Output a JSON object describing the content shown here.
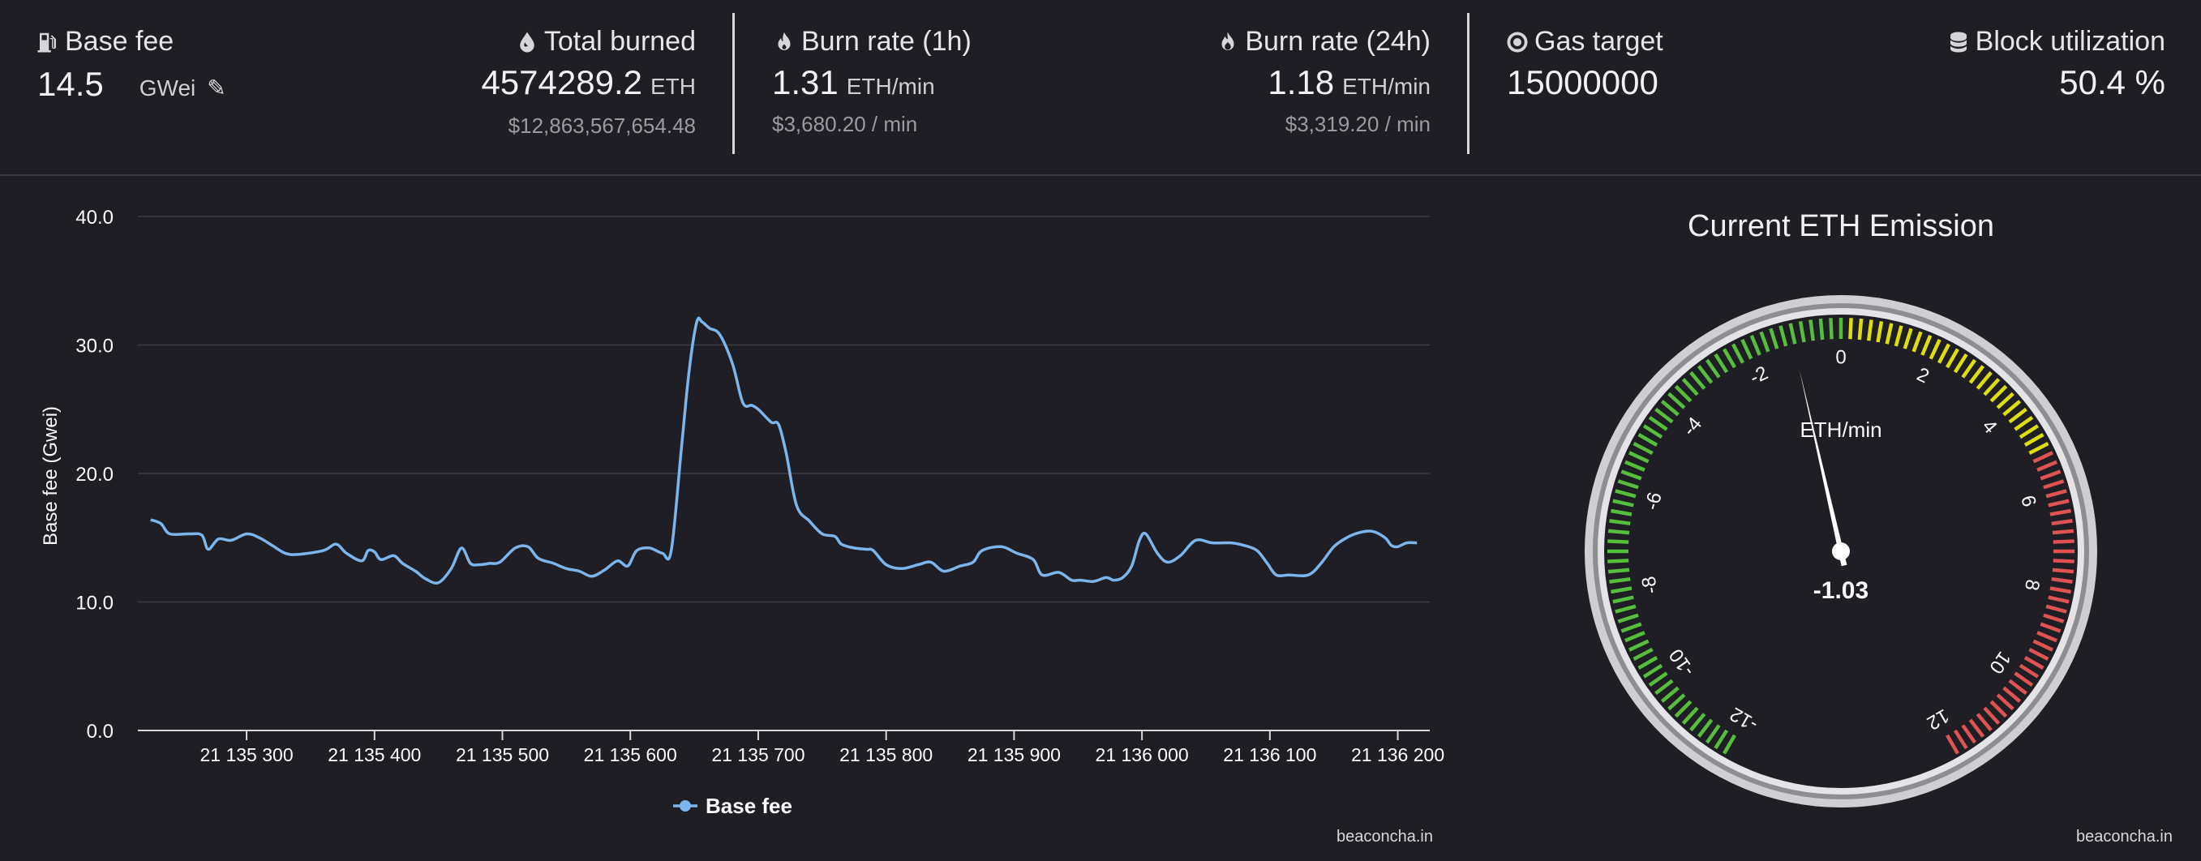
{
  "stats": {
    "base_fee": {
      "label": "Base fee",
      "value": "14.5",
      "unit": "GWei",
      "icon": "gas-pump-icon"
    },
    "total_burned": {
      "label": "Total burned",
      "value": "4574289.2",
      "unit": "ETH",
      "usd": "$12,863,567,654.48",
      "icon": "droplet-icon"
    },
    "burn_rate_1h": {
      "label": "Burn rate (1h)",
      "value": "1.31",
      "unit": "ETH/min",
      "usd": "$3,680.20 / min",
      "icon": "fire-icon"
    },
    "burn_rate_24h": {
      "label": "Burn rate (24h)",
      "value": "1.18",
      "unit": "ETH/min",
      "usd": "$3,319.20 / min",
      "icon": "fire-alt-icon"
    },
    "gas_target": {
      "label": "Gas target",
      "value": "15000000",
      "icon": "target-icon"
    },
    "block_utilization": {
      "label": "Block utilization",
      "value": "50.4 %",
      "icon": "database-icon"
    }
  },
  "chart_data": [
    {
      "type": "line",
      "ylabel": "Base fee (Gwei)",
      "xlabel": "",
      "ylim": [
        0,
        40
      ],
      "xlim": [
        21135215,
        21136225
      ],
      "yticks": [
        "0.0",
        "10.0",
        "20.0",
        "30.0",
        "40.0"
      ],
      "yticks_values": [
        0,
        10,
        20,
        30,
        40
      ],
      "xticks": [
        "21 135 300",
        "21 135 400",
        "21 135 500",
        "21 135 600",
        "21 135 700",
        "21 135 800",
        "21 135 900",
        "21 136 000",
        "21 136 100",
        "21 136 200"
      ],
      "xticks_values": [
        21135300,
        21135400,
        21135500,
        21135600,
        21135700,
        21135800,
        21135900,
        21136000,
        21136100,
        21136200
      ],
      "grid": true,
      "legend_position": "bottom-center",
      "series": [
        {
          "name": "Base fee",
          "color": "#7cb5ec",
          "x": [
            21135225,
            21135233,
            21135240,
            21135255,
            21135265,
            21135270,
            21135278,
            21135288,
            21135300,
            21135310,
            21135320,
            21135330,
            21135340,
            21135360,
            21135370,
            21135378,
            21135390,
            21135395,
            21135400,
            21135405,
            21135415,
            21135422,
            21135432,
            21135440,
            21135450,
            21135460,
            21135468,
            21135475,
            21135482,
            21135490,
            21135498,
            21135510,
            21135520,
            21135528,
            21135540,
            21135550,
            21135560,
            21135570,
            21135580,
            21135590,
            21135598,
            21135605,
            21135615,
            21135625,
            21135632,
            21135640,
            21135646,
            21135652,
            21135656,
            21135662,
            21135670,
            21135680,
            21135688,
            21135695,
            21135700,
            21135710,
            21135716,
            21135722,
            21135730,
            21135740,
            21135750,
            21135760,
            21135765,
            21135775,
            21135785,
            21135790,
            21135800,
            21135812,
            21135825,
            21135835,
            21135845,
            21135858,
            21135868,
            21135875,
            21135890,
            21135902,
            21135915,
            21135922,
            21135935,
            21135945,
            21135952,
            21135962,
            21135972,
            21135978,
            21135985,
            21135992,
            21135998,
            21136003,
            21136012,
            21136020,
            21136030,
            21136042,
            21136055,
            21136070,
            21136080,
            21136090,
            21136098,
            21136105,
            21136115,
            21136130,
            21136140,
            21136150,
            21136160,
            21136170,
            21136180,
            21136190,
            21136195,
            21136200,
            21136207,
            21136215
          ],
          "y": [
            16.4,
            16.1,
            15.3,
            15.3,
            15.2,
            14.1,
            14.9,
            14.8,
            15.3,
            15.0,
            14.4,
            13.8,
            13.7,
            14.0,
            14.5,
            13.8,
            13.2,
            14.0,
            13.9,
            13.3,
            13.6,
            13.0,
            12.4,
            11.8,
            11.5,
            12.6,
            14.2,
            13.0,
            12.9,
            13.0,
            13.1,
            14.2,
            14.3,
            13.4,
            13.0,
            12.6,
            12.4,
            12.0,
            12.5,
            13.2,
            12.8,
            14.0,
            14.2,
            13.8,
            14.0,
            22.0,
            28.0,
            31.8,
            31.8,
            31.3,
            30.8,
            28.5,
            25.5,
            25.3,
            25.0,
            24.0,
            23.8,
            21.5,
            17.5,
            16.3,
            15.3,
            15.1,
            14.5,
            14.2,
            14.1,
            14.0,
            12.9,
            12.6,
            12.9,
            13.1,
            12.4,
            12.8,
            13.1,
            14.0,
            14.3,
            13.8,
            13.3,
            12.1,
            12.3,
            11.7,
            11.7,
            11.6,
            11.9,
            11.7,
            11.9,
            12.8,
            14.8,
            15.3,
            13.8,
            13.1,
            13.6,
            14.8,
            14.6,
            14.6,
            14.4,
            14.0,
            13.0,
            12.1,
            12.1,
            12.1,
            13.0,
            14.3,
            15.0,
            15.4,
            15.5,
            15.0,
            14.4,
            14.3,
            14.6,
            14.6
          ]
        }
      ],
      "credit": "beaconcha.in"
    },
    {
      "type": "gauge",
      "title": "Current ETH Emission",
      "unit_label": "ETH/min",
      "value": -1.03,
      "value_label": "-1.03",
      "ylim": [
        -12,
        12
      ],
      "tick_labels": [
        "-12",
        "-10",
        "-8",
        "-6",
        "-4",
        "-2",
        "0",
        "2",
        "4",
        "6",
        "8",
        "10",
        "12"
      ],
      "bands": [
        {
          "from": -12,
          "to": 0,
          "color": "#55bf3b"
        },
        {
          "from": 0,
          "to": 5,
          "color": "#dddf0d"
        },
        {
          "from": 5,
          "to": 12,
          "color": "#df5353"
        }
      ],
      "credit": "beaconcha.in"
    }
  ]
}
